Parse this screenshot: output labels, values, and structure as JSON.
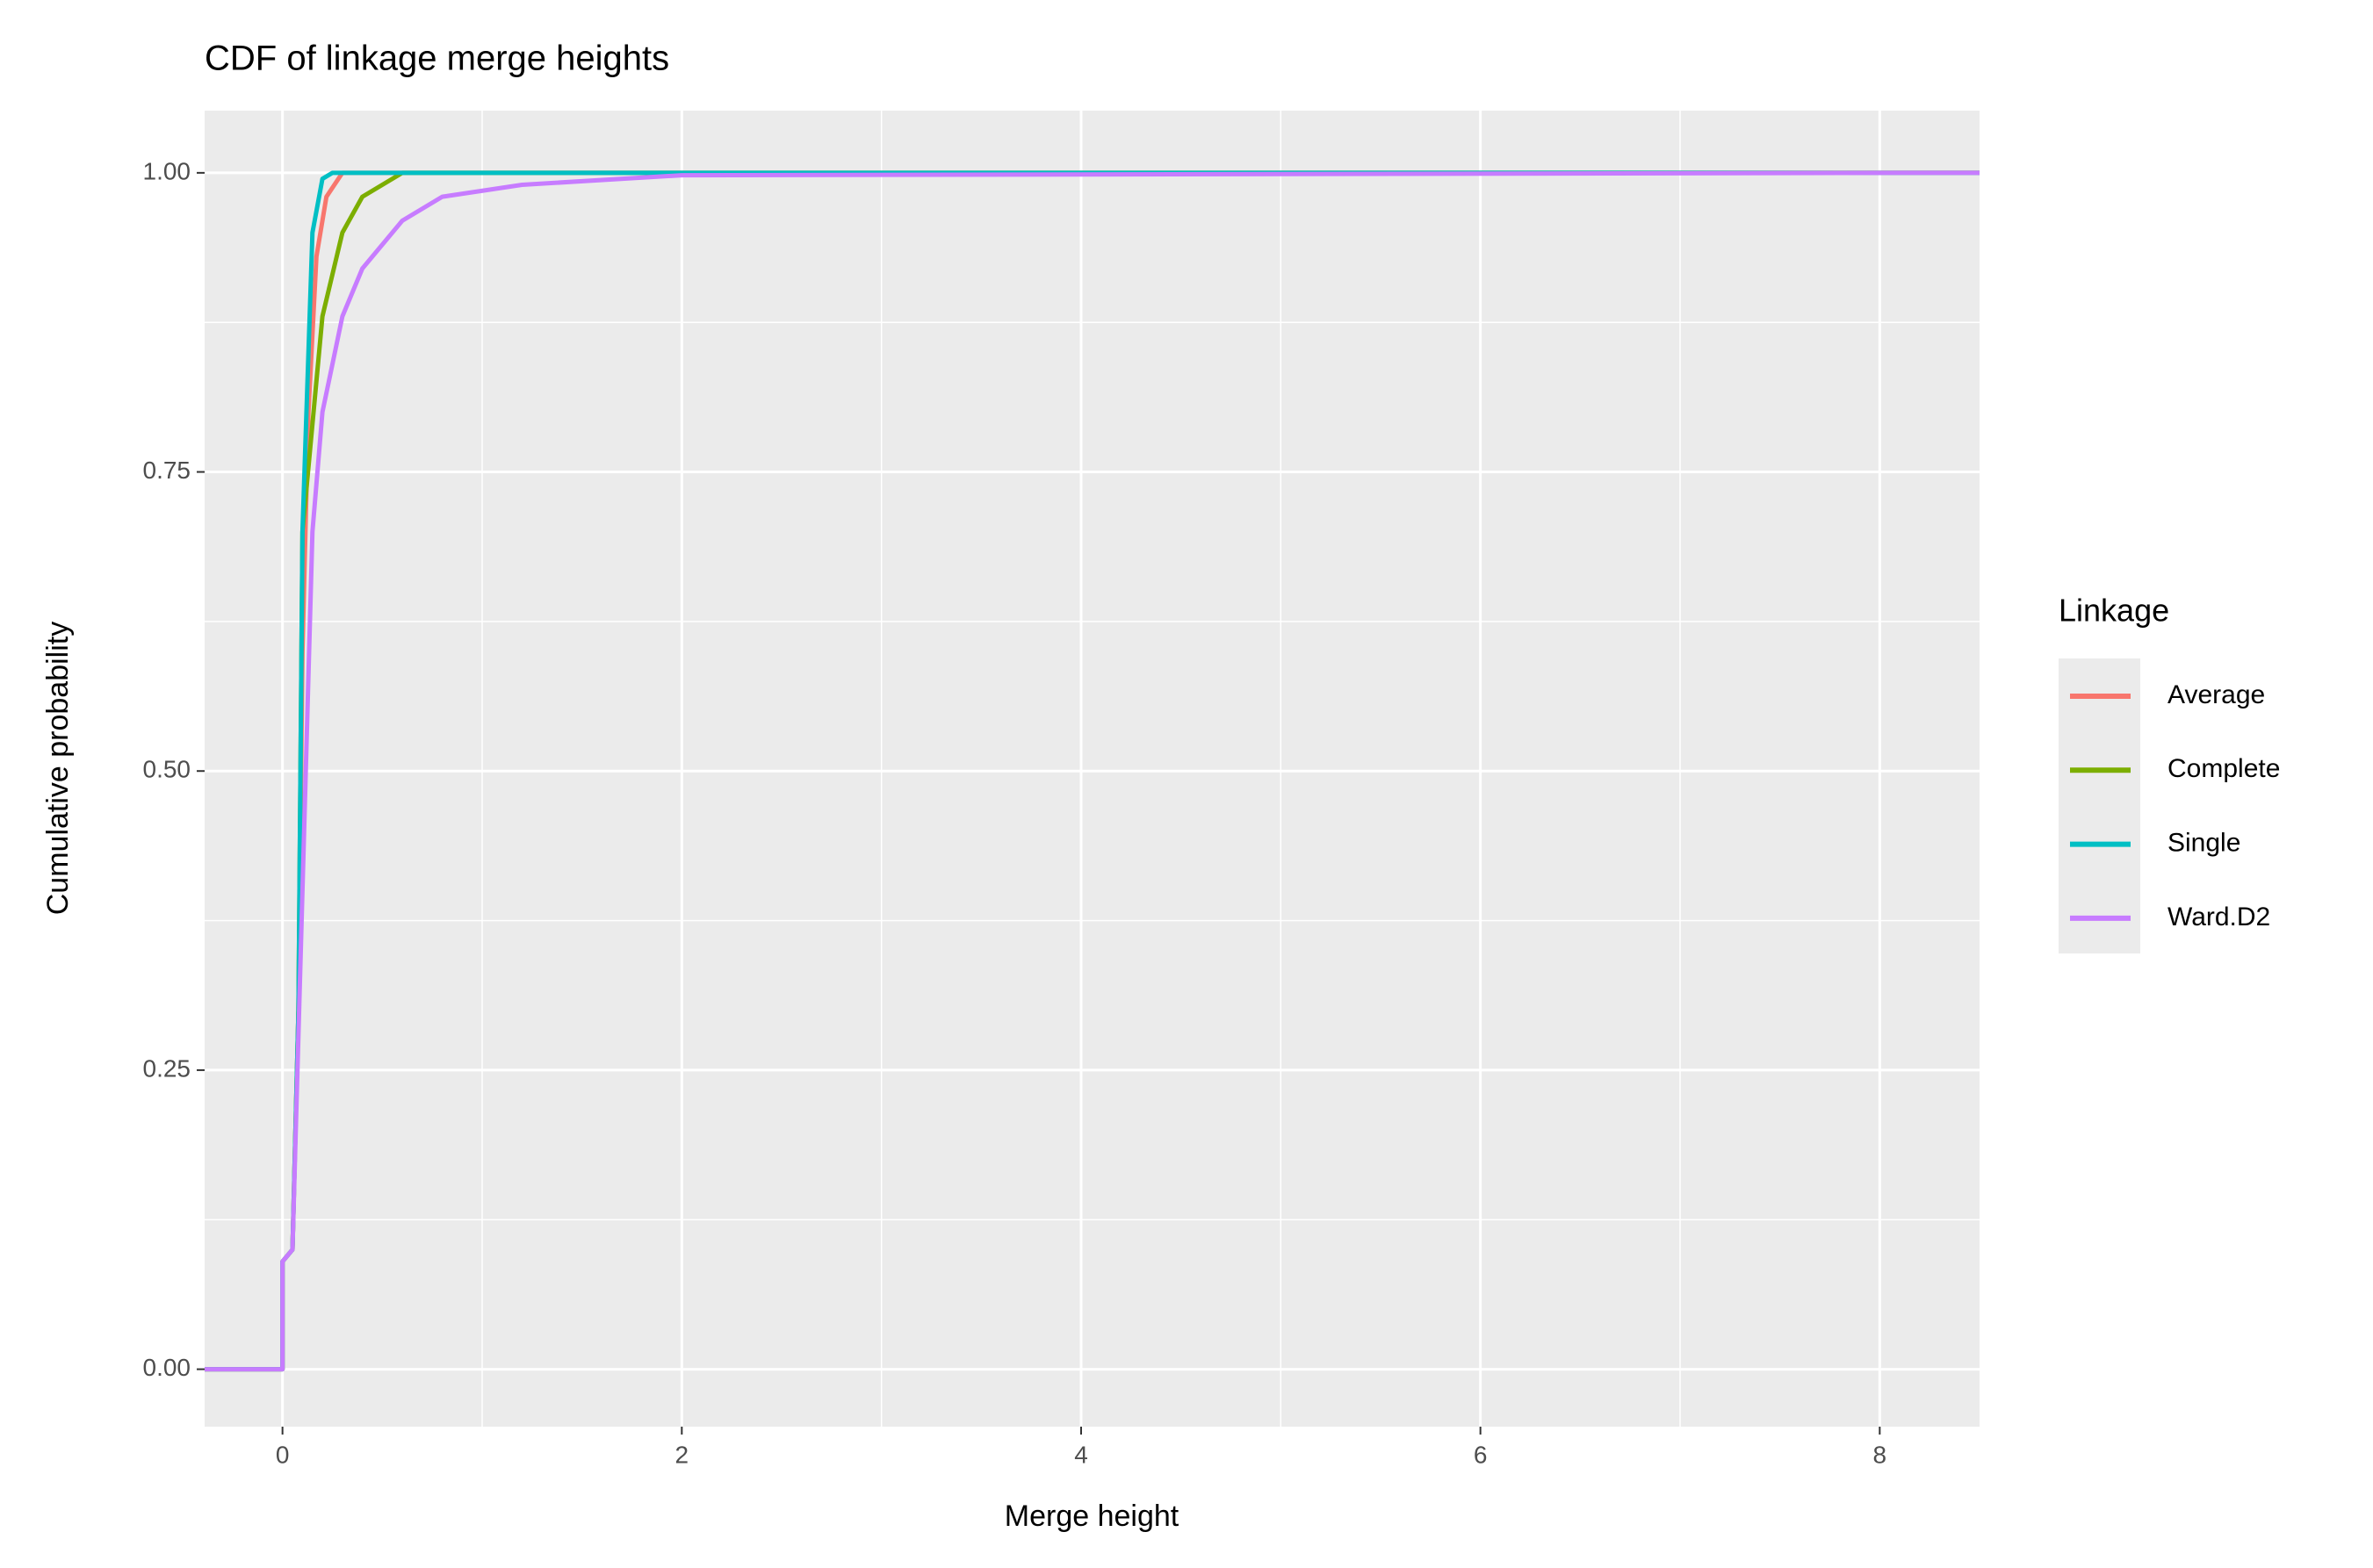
{
  "chart_data": {
    "type": "line",
    "title": "CDF of linkage merge heights",
    "x_label": "Merge height",
    "y_label": "Cumulative probability",
    "legend_title": "Linkage",
    "legend_position": "right",
    "grid": true,
    "xlim": [
      -0.39,
      8.5
    ],
    "ylim": [
      -0.048,
      1.052
    ],
    "xticks": [
      0,
      2,
      4,
      6,
      8
    ],
    "xminor": [
      1,
      3,
      5,
      7
    ],
    "yticks": [
      {
        "value": 0,
        "label": "0.00"
      },
      {
        "value": 0.25,
        "label": "0.25"
      },
      {
        "value": 0.5,
        "label": "0.50"
      },
      {
        "value": 0.75,
        "label": "0.75"
      },
      {
        "value": 1,
        "label": "1.00"
      }
    ],
    "yminor": [
      0.125,
      0.375,
      0.625,
      0.875
    ],
    "series": [
      {
        "name": "Average",
        "color": "#F8766D",
        "x": [
          -0.39,
          0,
          0,
          0.05,
          0.08,
          0.1,
          0.13,
          0.17,
          0.22,
          0.3,
          8.5
        ],
        "values": [
          0,
          0,
          0.09,
          0.1,
          0.3,
          0.6,
          0.8,
          0.93,
          0.98,
          1,
          1
        ]
      },
      {
        "name": "Complete",
        "color": "#7CAE00",
        "x": [
          -0.39,
          0,
          0,
          0.05,
          0.08,
          0.1,
          0.2,
          0.3,
          0.4,
          0.6,
          8.5
        ],
        "values": [
          0,
          0,
          0.09,
          0.1,
          0.3,
          0.7,
          0.88,
          0.95,
          0.98,
          1,
          1
        ]
      },
      {
        "name": "Single",
        "color": "#00BFC4",
        "x": [
          -0.39,
          0,
          0,
          0.05,
          0.08,
          0.1,
          0.15,
          0.2,
          0.25,
          8.5
        ],
        "values": [
          0,
          0,
          0.09,
          0.1,
          0.3,
          0.7,
          0.95,
          0.995,
          1,
          1
        ]
      },
      {
        "name": "Ward.D2",
        "color": "#C77CFF",
        "x": [
          -0.39,
          0,
          0,
          0.05,
          0.1,
          0.15,
          0.2,
          0.3,
          0.4,
          0.6,
          0.8,
          1.2,
          2,
          8.1,
          8.5
        ],
        "values": [
          0,
          0,
          0.09,
          0.1,
          0.4,
          0.7,
          0.8,
          0.88,
          0.92,
          0.96,
          0.98,
          0.99,
          0.998,
          1,
          1
        ]
      }
    ]
  }
}
